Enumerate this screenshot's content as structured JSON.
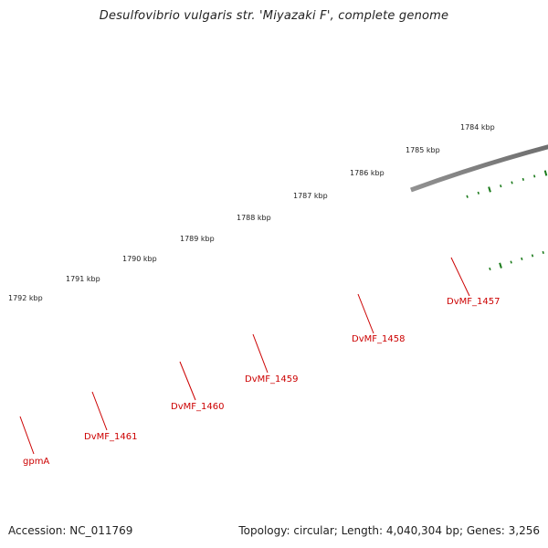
{
  "title": "Desulfovibrio vulgaris str. 'Miyazaki F', complete genome",
  "footer": {
    "accession": "Accession: NC_011769",
    "summary": "Topology: circular; Length: 4,040,304 bp; Genes: 3,256"
  },
  "scale_labels": [
    "1784 kbp",
    "1785 kbp",
    "1786 kbp",
    "1787 kbp",
    "1788 kbp",
    "1789 kbp",
    "1790 kbp",
    "1791 kbp",
    "1792 kbp"
  ],
  "gene_labels": [
    "DvMF_1457",
    "DvMF_1458",
    "DvMF_1459",
    "DvMF_1460",
    "DvMF_1461",
    "gpmA"
  ],
  "colors": {
    "backbone": "#7a7a7a",
    "cds_forward": "#e01010",
    "gene_reverse": "#22b422",
    "hypothetical": "#b8b8b8",
    "rna": "#00b8c8",
    "other": "#f08000",
    "tick": "#1a7a1a",
    "label": "#cc0000"
  }
}
